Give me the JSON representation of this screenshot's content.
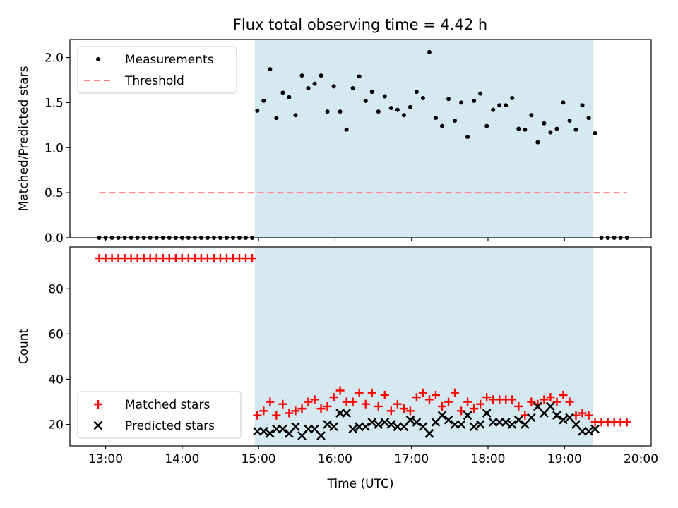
{
  "title": "Flux total observing time = 4.42 h",
  "chart_data": [
    {
      "type": "scatter",
      "panel": "top",
      "ylabel": "Matched/Predicted stars",
      "xlim": [
        "12:32",
        "20:08"
      ],
      "ylim": [
        0,
        2.2
      ],
      "yticks": [
        "0.0",
        "0.5",
        "1.0",
        "1.5",
        "2.0"
      ],
      "legend_position": "top-left",
      "shaded_region": {
        "x": [
          "14:57",
          "19:22"
        ],
        "color": "#d4eaf0"
      },
      "series": [
        {
          "name": "Measurements",
          "marker": "dot",
          "color": "#000000",
          "x": [
            "12:55",
            "13:00",
            "13:05",
            "13:10",
            "13:15",
            "13:20",
            "13:25",
            "13:30",
            "13:35",
            "13:40",
            "13:45",
            "13:50",
            "13:55",
            "14:00",
            "14:05",
            "14:10",
            "14:15",
            "14:20",
            "14:25",
            "14:30",
            "14:35",
            "14:40",
            "14:45",
            "14:50",
            "14:55",
            "14:59",
            "15:04",
            "15:09",
            "15:14",
            "15:19",
            "15:24",
            "15:29",
            "15:34",
            "15:39",
            "15:44",
            "15:49",
            "15:54",
            "15:59",
            "16:04",
            "16:09",
            "16:14",
            "16:19",
            "16:24",
            "16:29",
            "16:34",
            "16:39",
            "16:44",
            "16:49",
            "16:54",
            "16:59",
            "17:04",
            "17:09",
            "17:14",
            "17:19",
            "17:24",
            "17:29",
            "17:34",
            "17:39",
            "17:44",
            "17:49",
            "17:54",
            "17:59",
            "18:04",
            "18:09",
            "18:14",
            "18:19",
            "18:24",
            "18:29",
            "18:34",
            "18:39",
            "18:44",
            "18:49",
            "18:54",
            "18:59",
            "19:04",
            "19:09",
            "19:14",
            "19:19",
            "19:24",
            "19:29",
            "19:34",
            "19:39",
            "19:44",
            "19:49"
          ],
          "y": [
            0,
            0,
            0,
            0,
            0,
            0,
            0,
            0,
            0,
            0,
            0,
            0,
            0,
            0,
            0,
            0,
            0,
            0,
            0,
            0,
            0,
            0,
            0,
            0,
            0,
            1.41,
            1.52,
            1.87,
            1.33,
            1.61,
            1.56,
            1.36,
            1.8,
            1.66,
            1.71,
            1.8,
            1.4,
            1.68,
            1.4,
            1.2,
            1.66,
            1.79,
            1.52,
            1.62,
            1.4,
            1.57,
            1.44,
            1.42,
            1.36,
            1.45,
            1.62,
            1.55,
            2.06,
            1.33,
            1.24,
            1.54,
            1.3,
            1.5,
            1.12,
            1.52,
            1.6,
            1.24,
            1.42,
            1.47,
            1.47,
            1.55,
            1.21,
            1.2,
            1.36,
            1.06,
            1.27,
            1.17,
            1.21,
            1.5,
            1.3,
            1.2,
            1.47,
            1.33,
            1.16,
            0,
            0,
            0,
            0,
            0
          ]
        },
        {
          "name": "Threshold",
          "marker": "dashed-line",
          "color": "#ff7f7f",
          "x": [
            "12:55",
            "19:49"
          ],
          "y": [
            0.5,
            0.5
          ]
        }
      ]
    },
    {
      "type": "scatter",
      "panel": "bottom",
      "xlabel": "Time (UTC)",
      "ylabel": "Count",
      "xlim": [
        "12:32",
        "20:08"
      ],
      "ylim": [
        10.5,
        98.5
      ],
      "xticks": [
        "13:00",
        "14:00",
        "15:00",
        "16:00",
        "17:00",
        "18:00",
        "19:00",
        "20:00"
      ],
      "yticks": [
        "20",
        "40",
        "60",
        "80"
      ],
      "legend_position": "bottom-left",
      "shaded_region": {
        "x": [
          "14:57",
          "19:22"
        ],
        "color": "#d4eaf0"
      },
      "series": [
        {
          "name": "Matched stars",
          "marker": "plus",
          "color": "#ff0000",
          "x": [
            "12:55",
            "13:00",
            "13:05",
            "13:10",
            "13:15",
            "13:20",
            "13:25",
            "13:30",
            "13:35",
            "13:40",
            "13:45",
            "13:50",
            "13:55",
            "14:00",
            "14:05",
            "14:10",
            "14:15",
            "14:20",
            "14:25",
            "14:30",
            "14:35",
            "14:40",
            "14:45",
            "14:50",
            "14:55",
            "14:59",
            "15:04",
            "15:09",
            "15:14",
            "15:19",
            "15:24",
            "15:29",
            "15:34",
            "15:39",
            "15:44",
            "15:49",
            "15:54",
            "15:59",
            "16:04",
            "16:09",
            "16:14",
            "16:19",
            "16:24",
            "16:29",
            "16:34",
            "16:39",
            "16:44",
            "16:49",
            "16:54",
            "16:59",
            "17:04",
            "17:09",
            "17:14",
            "17:19",
            "17:24",
            "17:29",
            "17:34",
            "17:39",
            "17:44",
            "17:49",
            "17:54",
            "17:59",
            "18:04",
            "18:09",
            "18:14",
            "18:19",
            "18:24",
            "18:29",
            "18:34",
            "18:39",
            "18:44",
            "18:49",
            "18:54",
            "18:59",
            "19:04",
            "19:09",
            "19:14",
            "19:19",
            "19:24",
            "19:29",
            "19:34",
            "19:39",
            "19:44",
            "19:49"
          ],
          "y": [
            93.5,
            93.5,
            93.5,
            93.5,
            93.5,
            93.5,
            93.5,
            93.5,
            93.5,
            93.5,
            93.5,
            93.5,
            93.5,
            93.5,
            93.5,
            93.5,
            93.5,
            93.5,
            93.5,
            93.5,
            93.5,
            93.5,
            93.5,
            93.5,
            93.5,
            24,
            26,
            30,
            24,
            29,
            25,
            26,
            27,
            30,
            31,
            27,
            28,
            32,
            35,
            30,
            30,
            34,
            29,
            34,
            28,
            33,
            26,
            29,
            27,
            26,
            32,
            34,
            31,
            33,
            28,
            30,
            34,
            26,
            30,
            27,
            29,
            32,
            31,
            31,
            31,
            31,
            28,
            24,
            30,
            29,
            31,
            32,
            30,
            33,
            30,
            24,
            25,
            24,
            21,
            21,
            21,
            21,
            21,
            21
          ]
        },
        {
          "name": "Predicted stars",
          "marker": "x",
          "color": "#000000",
          "x": [
            "14:59",
            "15:04",
            "15:09",
            "15:14",
            "15:19",
            "15:24",
            "15:29",
            "15:34",
            "15:39",
            "15:44",
            "15:49",
            "15:54",
            "15:59",
            "16:04",
            "16:09",
            "16:14",
            "16:19",
            "16:24",
            "16:29",
            "16:34",
            "16:39",
            "16:44",
            "16:49",
            "16:54",
            "16:59",
            "17:04",
            "17:09",
            "17:14",
            "17:19",
            "17:24",
            "17:29",
            "17:34",
            "17:39",
            "17:44",
            "17:49",
            "17:54",
            "17:59",
            "18:04",
            "18:09",
            "18:14",
            "18:19",
            "18:24",
            "18:29",
            "18:34",
            "18:39",
            "18:44",
            "18:49",
            "18:54",
            "18:59",
            "19:04",
            "19:09",
            "19:14",
            "19:19",
            "19:24"
          ],
          "y": [
            17,
            17,
            16,
            18,
            18,
            16,
            19,
            15,
            18,
            18,
            15,
            20,
            19,
            25,
            25,
            18,
            19,
            19,
            21,
            20,
            21,
            20,
            19,
            19,
            22,
            21,
            19,
            16,
            21,
            24,
            22,
            20,
            20,
            24,
            19,
            20,
            25,
            21,
            21,
            21,
            20,
            22,
            20,
            23,
            28,
            25,
            28,
            24,
            22,
            23,
            20,
            17,
            17,
            18
          ]
        }
      ]
    }
  ]
}
